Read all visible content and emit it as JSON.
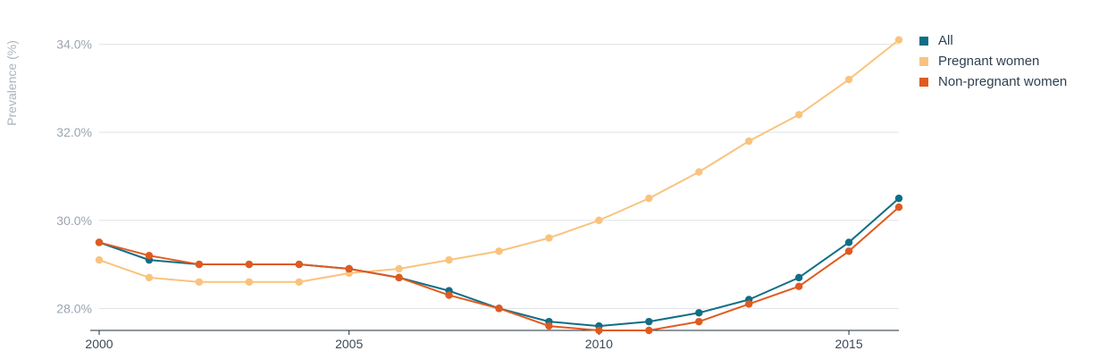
{
  "chart_data": {
    "type": "line",
    "title": "",
    "xlabel": "",
    "ylabel": "Prevalence (%)",
    "x": [
      2000,
      2001,
      2002,
      2003,
      2004,
      2005,
      2006,
      2007,
      2008,
      2009,
      2010,
      2011,
      2012,
      2013,
      2014,
      2015,
      2016
    ],
    "xlim": [
      2000,
      2016
    ],
    "ylim": [
      27.5,
      34.6
    ],
    "x_ticks": [
      {
        "value": 2000,
        "label": "2000"
      },
      {
        "value": 2005,
        "label": "2005"
      },
      {
        "value": 2010,
        "label": "2010"
      },
      {
        "value": 2015,
        "label": "2015"
      }
    ],
    "y_ticks": [
      {
        "value": 28,
        "label": "28.0%"
      },
      {
        "value": 30,
        "label": "30.0%"
      },
      {
        "value": 32,
        "label": "32.0%"
      },
      {
        "value": 34,
        "label": "34.0%"
      }
    ],
    "grid": "horizontal",
    "legend_position": "top-right",
    "series": [
      {
        "name": "All",
        "color": "#0f6e86",
        "values": [
          29.5,
          29.1,
          29.0,
          29.0,
          29.0,
          28.9,
          28.7,
          28.4,
          28.0,
          27.7,
          27.6,
          27.7,
          27.9,
          28.2,
          28.7,
          29.5,
          30.5
        ]
      },
      {
        "name": "Pregnant women",
        "color": "#f9c37e",
        "values": [
          29.1,
          28.7,
          28.6,
          28.6,
          28.6,
          28.8,
          28.9,
          29.1,
          29.3,
          29.6,
          30.0,
          30.5,
          31.1,
          31.8,
          32.4,
          33.2,
          34.1
        ]
      },
      {
        "name": "Non-pregnant women",
        "color": "#e05a20",
        "values": [
          29.5,
          29.2,
          29.0,
          29.0,
          29.0,
          28.9,
          28.7,
          28.3,
          28.0,
          27.6,
          27.5,
          27.5,
          27.7,
          28.1,
          28.5,
          29.3,
          30.3
        ]
      }
    ]
  }
}
